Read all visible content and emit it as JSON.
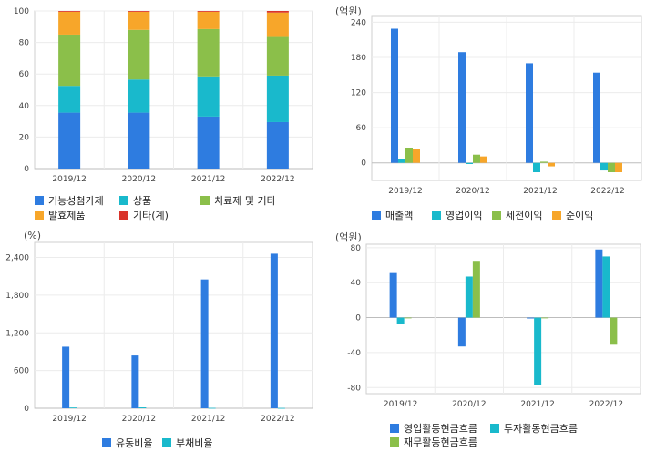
{
  "chart_data": [
    {
      "type": "bar",
      "stacked": true,
      "unit": "",
      "categories": [
        "2019/12",
        "2020/12",
        "2021/12",
        "2022/12"
      ],
      "series": [
        {
          "name": "기능성첨가제",
          "color": "#2e7ce0",
          "values": [
            35.5,
            35.5,
            33.0,
            29.5
          ]
        },
        {
          "name": "상품",
          "color": "#19b9cc",
          "values": [
            17.0,
            21.0,
            25.5,
            29.5
          ]
        },
        {
          "name": "치료제 및 기타",
          "color": "#8bbf4a",
          "values": [
            32.5,
            31.5,
            30.0,
            24.5
          ]
        },
        {
          "name": "발효제품",
          "color": "#f7a62a",
          "values": [
            14.5,
            11.5,
            11.0,
            15.5
          ]
        },
        {
          "name": "기타(계)",
          "color": "#d9342b",
          "values": [
            0.5,
            0.5,
            0.5,
            1.0
          ]
        }
      ],
      "ylim": [
        0,
        100
      ],
      "yticks": [
        0,
        20,
        40,
        60,
        80,
        100
      ],
      "ytick_labels": [
        "0",
        "20",
        "40",
        "60",
        "80",
        "100"
      ],
      "grid": true,
      "legend_position": "bottom"
    },
    {
      "type": "bar",
      "unit": "(억원)",
      "categories": [
        "2019/12",
        "2020/12",
        "2021/12",
        "2022/12"
      ],
      "series": [
        {
          "name": "매출액",
          "color": "#2e7ce0",
          "values": [
            229,
            189,
            170,
            154
          ]
        },
        {
          "name": "영업이익",
          "color": "#19b9cc",
          "values": [
            7,
            -2,
            -16,
            -13
          ]
        },
        {
          "name": "세전이익",
          "color": "#8bbf4a",
          "values": [
            26,
            14,
            2,
            -16
          ]
        },
        {
          "name": "순이익",
          "color": "#f7a62a",
          "values": [
            23,
            11,
            -6,
            -16
          ]
        }
      ],
      "ylim": [
        -30,
        250
      ],
      "yticks": [
        0,
        60,
        120,
        180,
        240
      ],
      "ytick_labels": [
        "0",
        "60",
        "120",
        "180",
        "240"
      ],
      "grid": true,
      "legend_position": "bottom"
    },
    {
      "type": "bar",
      "unit": "(%)",
      "categories": [
        "2019/12",
        "2020/12",
        "2021/12",
        "2022/12"
      ],
      "series": [
        {
          "name": "유동비율",
          "color": "#2e7ce0",
          "values": [
            980,
            840,
            2050,
            2460
          ]
        },
        {
          "name": "부채비율",
          "color": "#19b9cc",
          "values": [
            12,
            14,
            6,
            5
          ]
        }
      ],
      "ylim": [
        0,
        2640
      ],
      "yticks": [
        0,
        600,
        1200,
        1800,
        2400
      ],
      "ytick_labels": [
        "0",
        "600",
        "1,200",
        "1,800",
        "2,400"
      ],
      "grid": true,
      "legend_position": "bottom"
    },
    {
      "type": "bar",
      "unit": "(억원)",
      "categories": [
        "2019/12",
        "2020/12",
        "2021/12",
        "2022/12"
      ],
      "series": [
        {
          "name": "영업활동현금흐름",
          "color": "#2e7ce0",
          "values": [
            51,
            -33,
            -1,
            78
          ]
        },
        {
          "name": "투자활동현금흐름",
          "color": "#19b9cc",
          "values": [
            -7,
            47,
            -77,
            70
          ]
        },
        {
          "name": "재무활동현금흐름",
          "color": "#8bbf4a",
          "values": [
            0,
            65,
            0,
            -31
          ]
        }
      ],
      "ylim": [
        -87,
        84
      ],
      "yticks": [
        -80,
        -40,
        0,
        40,
        80
      ],
      "ytick_labels": [
        "-80",
        "-40",
        "0",
        "40",
        "80"
      ],
      "grid": true,
      "legend_position": "bottom"
    }
  ]
}
